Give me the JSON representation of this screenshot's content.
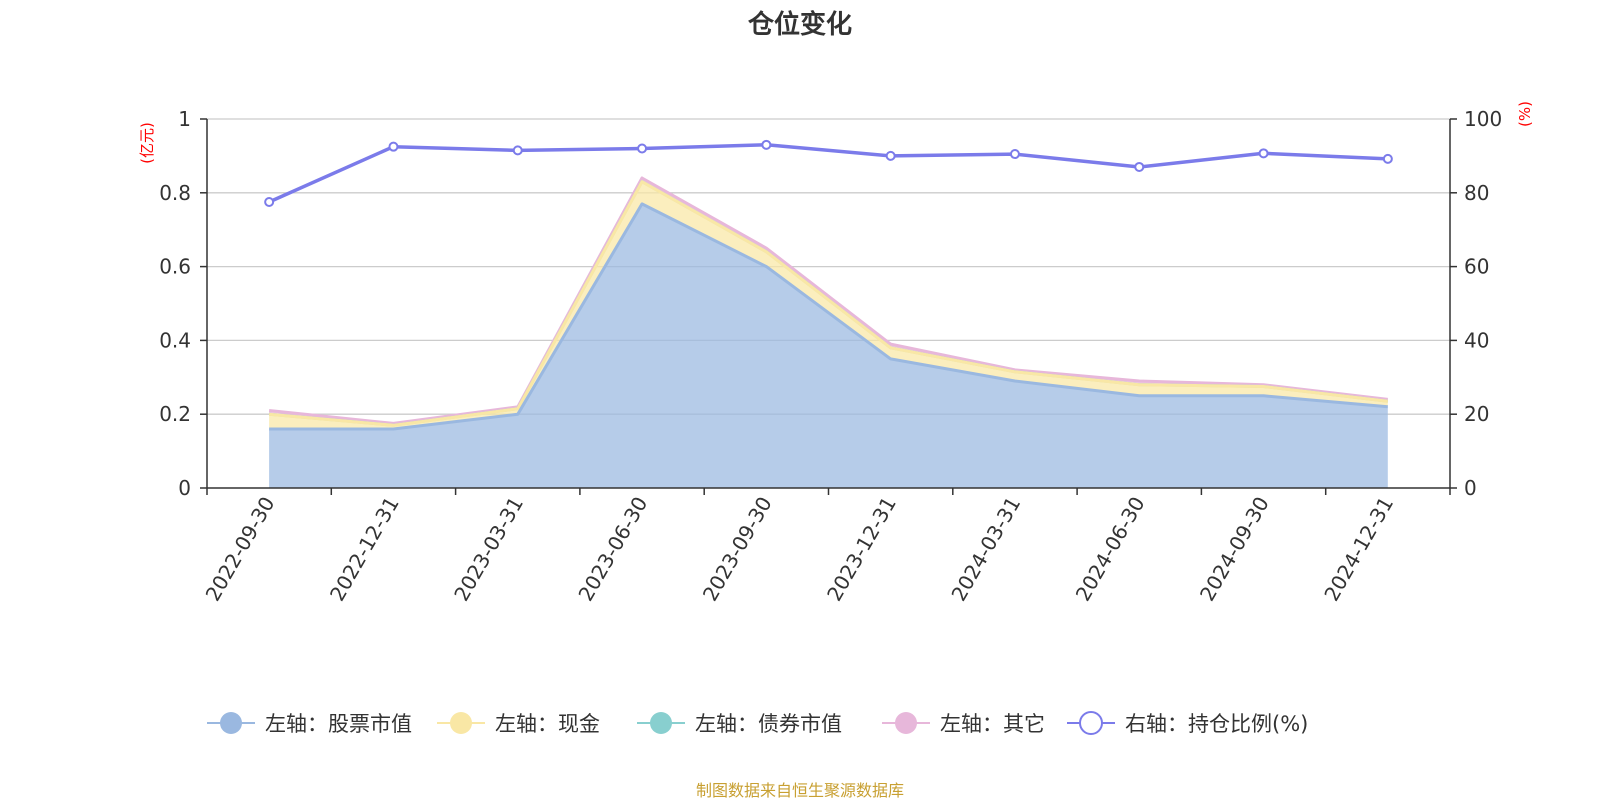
{
  "chart_data": {
    "type": "area",
    "title": "仓位变化",
    "categories": [
      "2022-09-30",
      "2022-12-31",
      "2023-03-31",
      "2023-06-30",
      "2023-09-30",
      "2023-12-31",
      "2024-03-31",
      "2024-06-30",
      "2024-09-30",
      "2024-12-31"
    ],
    "y_left": {
      "unit": "(亿元)",
      "min": 0,
      "max": 1,
      "ticks": [
        0,
        0.2,
        0.4,
        0.6,
        0.8,
        1
      ]
    },
    "y_right": {
      "unit": "(%)",
      "min": 0,
      "max": 100,
      "ticks": [
        0,
        20,
        40,
        60,
        80,
        100
      ]
    },
    "grid": true,
    "legend_position": "bottom",
    "series": [
      {
        "name": "左轴：股票市值",
        "axis": "left",
        "color": "#9ab8e0",
        "values": [
          0.16,
          0.16,
          0.2,
          0.77,
          0.6,
          0.35,
          0.29,
          0.25,
          0.25,
          0.22
        ]
      },
      {
        "name": "左轴：现金",
        "axis": "left",
        "color": "#f9e7a5",
        "values": [
          0.04,
          0.01,
          0.015,
          0.06,
          0.04,
          0.03,
          0.025,
          0.03,
          0.025,
          0.015
        ]
      },
      {
        "name": "左轴：债券市值",
        "axis": "left",
        "color": "#88cfcf",
        "values": [
          0,
          0,
          0,
          0,
          0,
          0,
          0,
          0,
          0,
          0
        ]
      },
      {
        "name": "左轴：其它",
        "axis": "left",
        "color": "#e7b7da",
        "values": [
          0.01,
          0.005,
          0.005,
          0.01,
          0.01,
          0.01,
          0.005,
          0.01,
          0.005,
          0.005
        ]
      },
      {
        "name": "右轴：持仓比例(%)",
        "axis": "right",
        "color": "#7b7bea",
        "values": [
          77.5,
          92.5,
          91.5,
          92.0,
          93.0,
          90.0,
          90.5,
          87.0,
          90.7,
          89.2
        ]
      }
    ],
    "source": "制图数据来自恒生聚源数据库"
  },
  "colors": {
    "axis": "#333333",
    "grid": "#cccccc",
    "unit": "#ff0000",
    "source": "#c8a032"
  }
}
